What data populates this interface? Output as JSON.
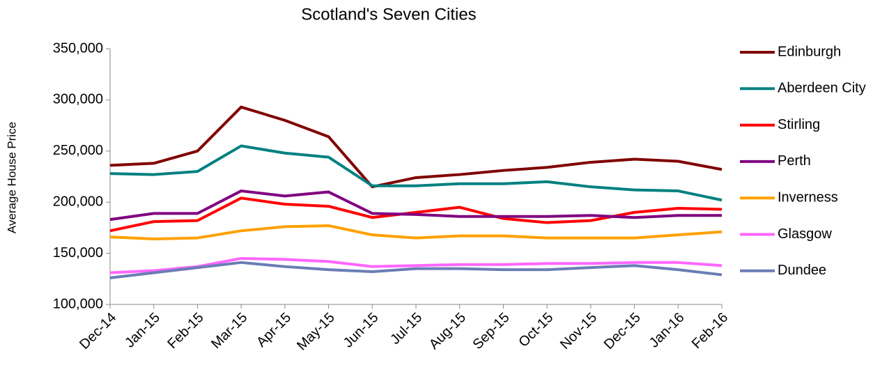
{
  "chart_data": {
    "type": "line",
    "title": "Scotland's Seven Cities",
    "y_label": "Average House Price",
    "categories": [
      "Dec-14",
      "Jan-15",
      "Feb-15",
      "Mar-15",
      "Apr-15",
      "May-15",
      "Jun-15",
      "Jul-15",
      "Aug-15",
      "Sep-15",
      "Oct-15",
      "Nov-15",
      "Dec-15",
      "Jan-16",
      "Feb-16"
    ],
    "ylim": [
      100000,
      350000
    ],
    "yticks": [
      {
        "value": 100000,
        "label": "100,000"
      },
      {
        "value": 150000,
        "label": "150,000"
      },
      {
        "value": 200000,
        "label": "200,000"
      },
      {
        "value": 250000,
        "label": "250,000"
      },
      {
        "value": 300000,
        "label": "300,000"
      },
      {
        "value": 350000,
        "label": "350,000"
      }
    ],
    "legend": "right",
    "series": [
      {
        "name": "Edinburgh",
        "color": "#800000",
        "values": [
          236000,
          238000,
          250000,
          293000,
          280000,
          264000,
          215000,
          224000,
          227000,
          231000,
          234000,
          239000,
          242000,
          240000,
          232000
        ]
      },
      {
        "name": "Aberdeen City",
        "color": "#008080",
        "values": [
          228000,
          227000,
          230000,
          255000,
          248000,
          244000,
          216000,
          216000,
          218000,
          218000,
          220000,
          215000,
          212000,
          211000,
          202000
        ]
      },
      {
        "name": "Stirling",
        "color": "#ff0000",
        "values": [
          172000,
          181000,
          182000,
          204000,
          198000,
          196000,
          185000,
          190000,
          195000,
          184000,
          180000,
          182000,
          190000,
          194000,
          193000
        ]
      },
      {
        "name": "Perth",
        "color": "#800080",
        "values": [
          183000,
          189000,
          189000,
          211000,
          206000,
          210000,
          189000,
          188000,
          186000,
          186000,
          186000,
          187000,
          185000,
          187000,
          187000
        ]
      },
      {
        "name": "Inverness",
        "color": "#ffa000",
        "values": [
          166000,
          164000,
          165000,
          172000,
          176000,
          177000,
          168000,
          165000,
          167000,
          167000,
          165000,
          165000,
          165000,
          168000,
          171000
        ]
      },
      {
        "name": "Glasgow",
        "color": "#ff66ff",
        "values": [
          131000,
          133000,
          137000,
          145000,
          144000,
          142000,
          137000,
          138000,
          139000,
          139000,
          140000,
          140000,
          141000,
          141000,
          138000
        ]
      },
      {
        "name": "Dundee",
        "color": "#6a7db5",
        "values": [
          126000,
          131000,
          136000,
          141000,
          137000,
          134000,
          132000,
          135000,
          135000,
          134000,
          134000,
          136000,
          138000,
          134000,
          129000
        ]
      }
    ]
  }
}
